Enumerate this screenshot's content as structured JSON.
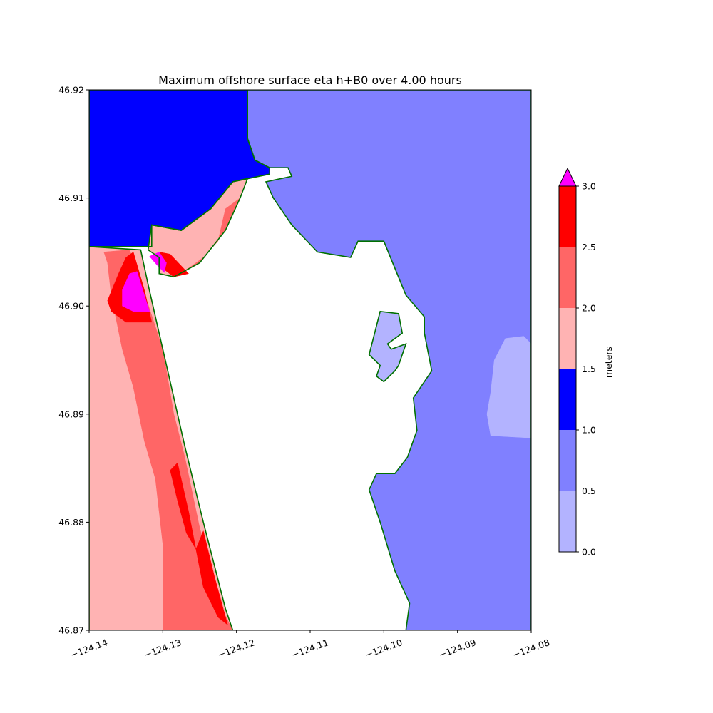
{
  "chart_data": {
    "type": "heatmap",
    "title": "Maximum offshore surface eta h+B0 over 4.00 hours",
    "xlabel": "",
    "ylabel": "",
    "xlim": [
      -124.14,
      -124.08
    ],
    "ylim": [
      46.87,
      46.92
    ],
    "x_ticks": [
      -124.14,
      -124.13,
      -124.12,
      -124.11,
      -124.1,
      -124.09,
      -124.08
    ],
    "x_tick_labels": [
      "−124.14",
      "−124.13",
      "−124.12",
      "−124.11",
      "−124.10",
      "−124.09",
      "−124.08"
    ],
    "y_ticks": [
      46.87,
      46.88,
      46.89,
      46.9,
      46.91,
      46.92
    ],
    "y_tick_labels": [
      "46.87",
      "46.88",
      "46.89",
      "46.90",
      "46.91",
      "46.92"
    ],
    "colorbar": {
      "label": "meters",
      "levels": [
        0.0,
        0.5,
        1.0,
        1.5,
        2.0,
        2.5,
        3.0
      ],
      "level_labels": [
        "0.0",
        "0.5",
        "1.0",
        "1.5",
        "2.0",
        "2.5",
        "3.0"
      ],
      "colors": [
        "#b3b3ff",
        "#8080ff",
        "#0000ff",
        "#ffb3b3",
        "#ff6666",
        "#ff0000"
      ],
      "over_color": "#ff00ff",
      "extend": "max"
    },
    "land_color": "#ffffff",
    "shoreline_color": "#007000",
    "regions": [
      {
        "name": "north-bay-blue",
        "level": "1.0-1.5",
        "color": "#0000ff",
        "polygon": [
          [
            -124.14,
            46.92
          ],
          [
            -124.1185,
            46.92
          ],
          [
            -124.1185,
            46.9155
          ],
          [
            -124.1175,
            46.9135
          ],
          [
            -124.1155,
            46.9128
          ],
          [
            -124.1155,
            46.9122
          ],
          [
            -124.1205,
            46.9115
          ],
          [
            -124.1235,
            46.909
          ],
          [
            -124.1275,
            46.907
          ],
          [
            -124.1315,
            46.9075
          ],
          [
            -124.1315,
            46.9055
          ],
          [
            -124.14,
            46.9055
          ]
        ]
      },
      {
        "name": "offshore-mid-blue",
        "level": "0.5-1.0",
        "color": "#8080ff",
        "polygon": [
          [
            -124.1185,
            46.92
          ],
          [
            -124.08,
            46.92
          ],
          [
            -124.08,
            46.87
          ],
          [
            -124.097,
            46.87
          ],
          [
            -124.0965,
            46.8725
          ],
          [
            -124.0985,
            46.8755
          ],
          [
            -124.1005,
            46.88
          ],
          [
            -124.102,
            46.883
          ],
          [
            -124.101,
            46.8845
          ],
          [
            -124.0985,
            46.8845
          ],
          [
            -124.0968,
            46.886
          ],
          [
            -124.0955,
            46.8885
          ],
          [
            -124.096,
            46.8915
          ],
          [
            -124.0935,
            46.894
          ],
          [
            -124.0945,
            46.8975
          ],
          [
            -124.0945,
            46.899
          ],
          [
            -124.097,
            46.901
          ],
          [
            -124.0985,
            46.9035
          ],
          [
            -124.1,
            46.906
          ],
          [
            -124.1035,
            46.906
          ],
          [
            -124.1045,
            46.9045
          ],
          [
            -124.109,
            46.905
          ],
          [
            -124.1125,
            46.9075
          ],
          [
            -124.115,
            46.91
          ],
          [
            -124.116,
            46.9115
          ],
          [
            -124.1125,
            46.912
          ],
          [
            -124.113,
            46.9128
          ],
          [
            -124.1155,
            46.9128
          ],
          [
            -124.1175,
            46.9135
          ],
          [
            -124.1185,
            46.9155
          ]
        ]
      },
      {
        "name": "bay-light-blue",
        "level": "0.0-0.5",
        "color": "#b3b3ff",
        "polygon": [
          [
            -124.1005,
            46.8995
          ],
          [
            -124.098,
            46.8993
          ],
          [
            -124.0975,
            46.8975
          ],
          [
            -124.0995,
            46.8965
          ],
          [
            -124.099,
            46.896
          ],
          [
            -124.097,
            46.8965
          ],
          [
            -124.098,
            46.8945
          ],
          [
            -124.0985,
            46.894
          ],
          [
            -124.1,
            46.893
          ],
          [
            -124.101,
            46.8935
          ],
          [
            -124.1005,
            46.8945
          ],
          [
            -124.102,
            46.8955
          ]
        ]
      },
      {
        "name": "far-east-light-blue",
        "level": "0.0-0.5",
        "color": "#b3b3ff",
        "polygon": [
          [
            -124.08,
            46.8965
          ],
          [
            -124.081,
            46.8972
          ],
          [
            -124.0835,
            46.897
          ],
          [
            -124.085,
            46.895
          ],
          [
            -124.0855,
            46.892
          ],
          [
            -124.086,
            46.89
          ],
          [
            -124.0855,
            46.888
          ],
          [
            -124.08,
            46.8878
          ]
        ]
      },
      {
        "name": "entrance-pink",
        "level": "1.5-2.0",
        "color": "#ffb3b3",
        "polygon": [
          [
            -124.1315,
            46.9075
          ],
          [
            -124.1275,
            46.907
          ],
          [
            -124.1235,
            46.909
          ],
          [
            -124.1205,
            46.9115
          ],
          [
            -124.1185,
            46.9118
          ],
          [
            -124.1195,
            46.91
          ],
          [
            -124.1215,
            46.907
          ],
          [
            -124.125,
            46.904
          ],
          [
            -124.1285,
            46.9027
          ],
          [
            -124.1305,
            46.903
          ],
          [
            -124.1305,
            46.9045
          ],
          [
            -124.132,
            46.9052
          ]
        ]
      },
      {
        "name": "entrance-coral",
        "level": "2.0-2.5",
        "color": "#ff6666",
        "polygon": [
          [
            -124.1215,
            46.909
          ],
          [
            -124.1195,
            46.91
          ],
          [
            -124.1215,
            46.907
          ],
          [
            -124.125,
            46.904
          ],
          [
            -124.1285,
            46.9027
          ],
          [
            -124.1265,
            46.9035
          ],
          [
            -124.1245,
            46.9045
          ],
          [
            -124.1225,
            46.906
          ]
        ]
      },
      {
        "name": "entrance-red",
        "level": "2.5-3.0",
        "color": "#ff0000",
        "polygon": [
          [
            -124.131,
            46.904
          ],
          [
            -124.1285,
            46.9027
          ],
          [
            -124.1265,
            46.903
          ],
          [
            -124.129,
            46.9048
          ],
          [
            -124.1305,
            46.905
          ]
        ]
      },
      {
        "name": "entrance-magenta",
        "level": ">3.0",
        "color": "#ff00ff",
        "polygon": [
          [
            -124.1318,
            46.9046
          ],
          [
            -124.1308,
            46.9038
          ],
          [
            -124.1298,
            46.9031
          ],
          [
            -124.1295,
            46.904
          ],
          [
            -124.1305,
            46.905
          ]
        ]
      },
      {
        "name": "west-coast-pink",
        "level": "1.5-2.0",
        "color": "#ffb3b3",
        "polygon": [
          [
            -124.14,
            46.9055
          ],
          [
            -124.133,
            46.9052
          ],
          [
            -124.132,
            46.902
          ],
          [
            -124.131,
            46.899
          ],
          [
            -124.129,
            46.893
          ],
          [
            -124.127,
            46.887
          ],
          [
            -124.1245,
            46.88
          ],
          [
            -124.1215,
            46.872
          ],
          [
            -124.1205,
            46.87
          ],
          [
            -124.14,
            46.87
          ]
        ]
      },
      {
        "name": "west-coast-coral",
        "level": "2.0-2.5",
        "color": "#ff6666",
        "polygon": [
          [
            -124.138,
            46.905
          ],
          [
            -124.1345,
            46.9052
          ],
          [
            -124.1325,
            46.9012
          ],
          [
            -124.13,
            46.896
          ],
          [
            -124.1285,
            46.89
          ],
          [
            -124.127,
            46.886
          ],
          [
            -124.125,
            46.8795
          ],
          [
            -124.122,
            46.872
          ],
          [
            -124.1205,
            46.87
          ],
          [
            -124.13,
            46.87
          ],
          [
            -124.13,
            46.878
          ],
          [
            -124.131,
            46.884
          ],
          [
            -124.1325,
            46.8875
          ],
          [
            -124.134,
            46.8925
          ],
          [
            -124.1355,
            46.896
          ],
          [
            -124.137,
            46.901
          ],
          [
            -124.1375,
            46.904
          ]
        ]
      },
      {
        "name": "west-coast-red-north",
        "level": "2.5-3.0",
        "color": "#ff0000",
        "polygon": [
          [
            -124.134,
            46.905
          ],
          [
            -124.1325,
            46.9015
          ],
          [
            -124.1315,
            46.8985
          ],
          [
            -124.135,
            46.8985
          ],
          [
            -124.137,
            46.8995
          ],
          [
            -124.1375,
            46.9005
          ],
          [
            -124.136,
            46.903
          ],
          [
            -124.135,
            46.9045
          ]
        ]
      },
      {
        "name": "west-coast-red-mid",
        "level": "2.5-3.0",
        "color": "#ff0000",
        "polygon": [
          [
            -124.128,
            46.8855
          ],
          [
            -124.1265,
            46.881
          ],
          [
            -124.1255,
            46.8775
          ],
          [
            -124.1268,
            46.879
          ],
          [
            -124.128,
            46.882
          ],
          [
            -124.129,
            46.8848
          ]
        ]
      },
      {
        "name": "west-coast-red-south",
        "level": "2.5-3.0",
        "color": "#ff0000",
        "polygon": [
          [
            -124.1245,
            46.8792
          ],
          [
            -124.123,
            46.875
          ],
          [
            -124.1212,
            46.8705
          ],
          [
            -124.1225,
            46.8712
          ],
          [
            -124.1245,
            46.874
          ],
          [
            -124.1255,
            46.8775
          ]
        ]
      },
      {
        "name": "west-coast-magenta",
        "level": ">3.0",
        "color": "#ff00ff",
        "polygon": [
          [
            -124.1335,
            46.9032
          ],
          [
            -124.1318,
            46.8995
          ],
          [
            -124.134,
            46.8995
          ],
          [
            -124.1355,
            46.9
          ],
          [
            -124.1355,
            46.9015
          ],
          [
            -124.1345,
            46.903
          ]
        ]
      }
    ]
  }
}
